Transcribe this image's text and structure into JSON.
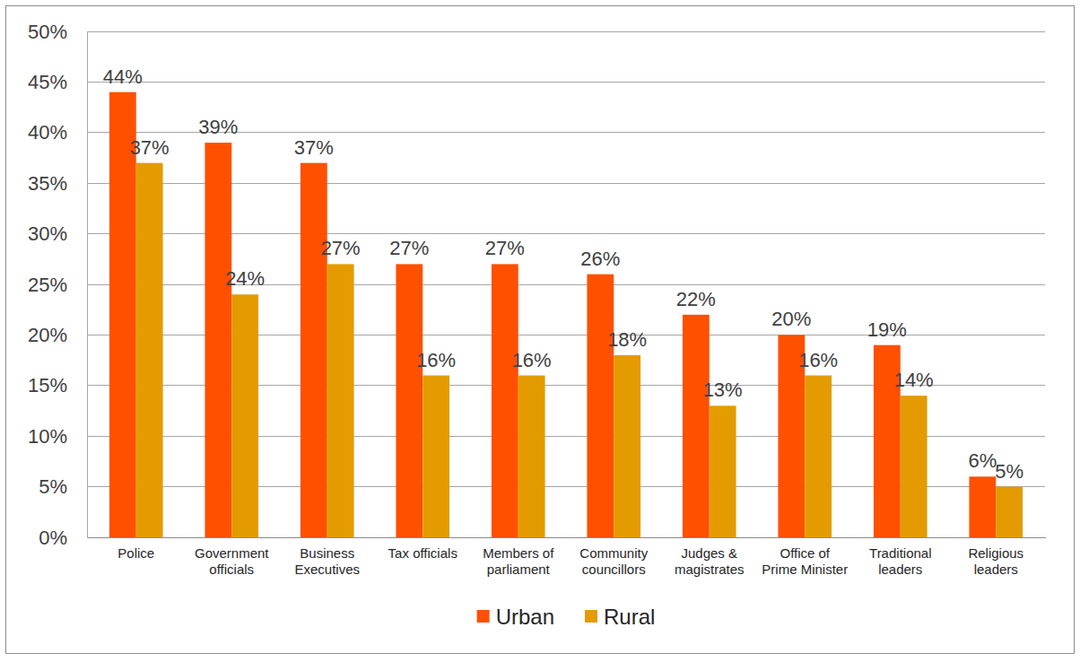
{
  "chart_data": {
    "type": "bar",
    "categories": [
      "Police",
      "Government\nofficials",
      "Business\nExecutives",
      "Tax officials",
      "Members of\nparliament",
      "Community\ncouncillors",
      "Judges &\nmagistrates",
      "Office of\nPrime Minister",
      "Traditional\nleaders",
      "Religious\nleaders"
    ],
    "series": [
      {
        "name": "Urban",
        "color": "#ff5000",
        "values": [
          44,
          39,
          37,
          27,
          27,
          26,
          22,
          20,
          19,
          6
        ],
        "value_labels": [
          "44%",
          "39%",
          "37%",
          "27%",
          "27%",
          "26%",
          "22%",
          "20%",
          "19%",
          "6%"
        ]
      },
      {
        "name": "Rural",
        "color": "#e39b00",
        "values": [
          37,
          24,
          27,
          16,
          16,
          18,
          13,
          16,
          14,
          5
        ],
        "value_labels": [
          "37%",
          "24%",
          "27%",
          "16%",
          "16%",
          "18%",
          "13%",
          "16%",
          "14%",
          "5%"
        ]
      }
    ],
    "ylim": [
      0,
      50
    ],
    "yticks": [
      {
        "value": 0,
        "label": "0%"
      },
      {
        "value": 5,
        "label": "5%"
      },
      {
        "value": 10,
        "label": "10%"
      },
      {
        "value": 15,
        "label": "15%"
      },
      {
        "value": 20,
        "label": "20%"
      },
      {
        "value": 25,
        "label": "25%"
      },
      {
        "value": 30,
        "label": "30%"
      },
      {
        "value": 35,
        "label": "35%"
      },
      {
        "value": 40,
        "label": "40%"
      },
      {
        "value": 45,
        "label": "45%"
      },
      {
        "value": 50,
        "label": "50%"
      }
    ],
    "grid": true,
    "legend": "bottom",
    "data_labels": true
  }
}
